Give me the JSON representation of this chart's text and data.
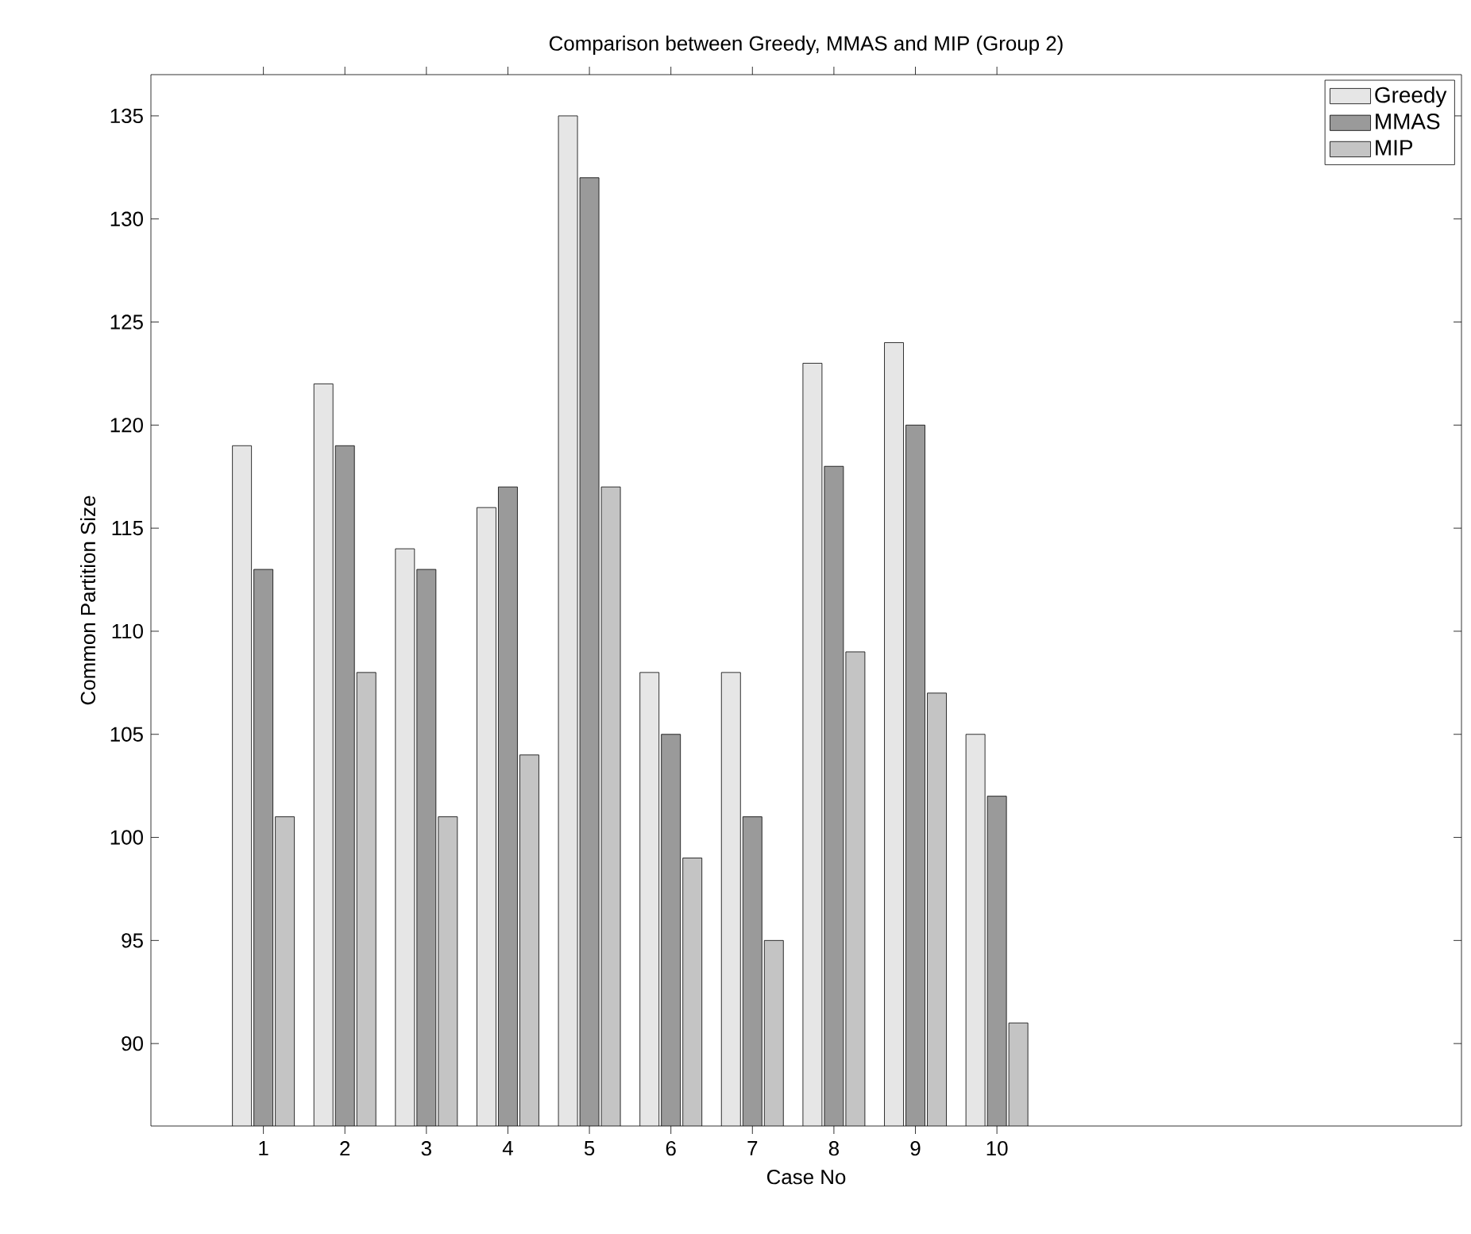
{
  "chart_data": {
    "type": "bar",
    "title": "Comparison between Greedy, MMAS and MIP (Group 2)",
    "xlabel": "Case No",
    "ylabel": "Common Partition Size",
    "categories": [
      "1",
      "2",
      "3",
      "4",
      "5",
      "6",
      "7",
      "8",
      "9",
      "10"
    ],
    "series": [
      {
        "name": "Greedy",
        "color": "#e6e6e6",
        "values": [
          119,
          122,
          114,
          116,
          135,
          108,
          108,
          123,
          124,
          105
        ]
      },
      {
        "name": "MMAS",
        "color": "#9a9a9a",
        "values": [
          113,
          119,
          113,
          117,
          132,
          105,
          101,
          118,
          120,
          102
        ]
      },
      {
        "name": "MIP",
        "color": "#c4c4c4",
        "values": [
          101,
          108,
          101,
          104,
          117,
          99,
          95,
          109,
          107,
          91
        ]
      }
    ],
    "ylim": [
      86,
      137
    ],
    "yticks": [
      90,
      95,
      100,
      105,
      110,
      115,
      120,
      125,
      130,
      135
    ],
    "grid": false,
    "legend": "top right"
  }
}
